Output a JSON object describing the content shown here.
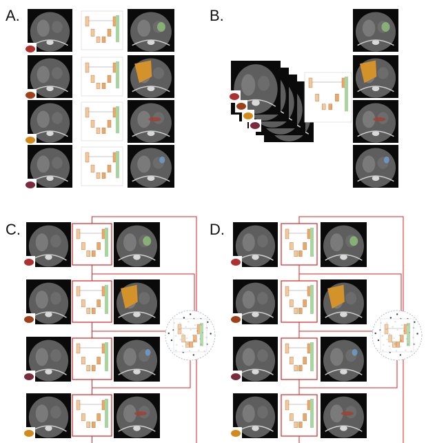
{
  "panels": [
    {
      "label": "A."
    },
    {
      "label": "B."
    },
    {
      "label": "C."
    },
    {
      "label": "D."
    }
  ]
}
